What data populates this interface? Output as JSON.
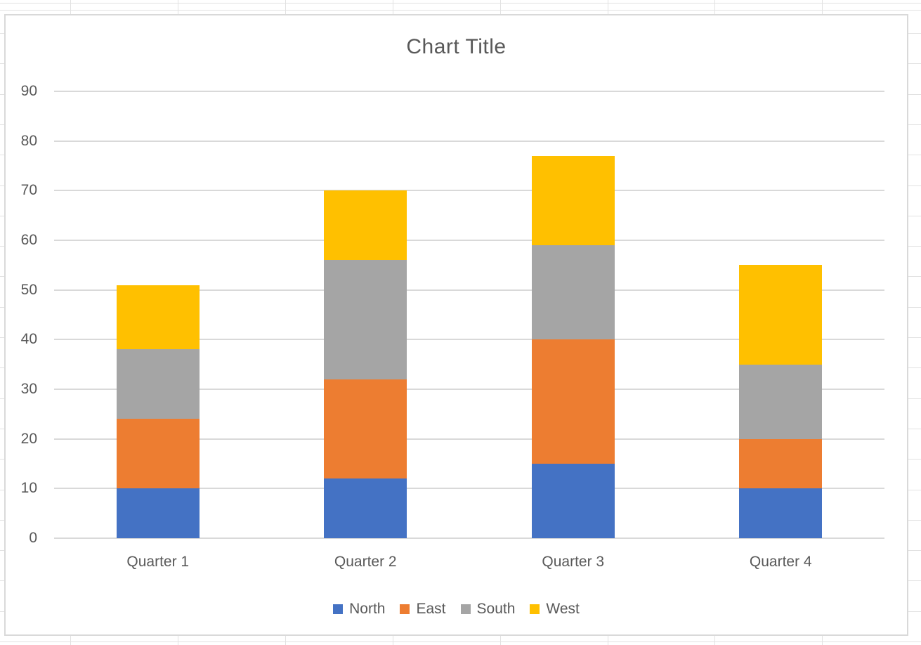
{
  "chart_data": {
    "type": "bar",
    "stacked": true,
    "title": "Chart Title",
    "categories": [
      "Quarter 1",
      "Quarter 2",
      "Quarter 3",
      "Quarter 4"
    ],
    "series": [
      {
        "name": "North",
        "color": "#4472C4",
        "values": [
          10,
          12,
          15,
          10
        ]
      },
      {
        "name": "East",
        "color": "#ED7D31",
        "values": [
          14,
          20,
          25,
          10
        ]
      },
      {
        "name": "South",
        "color": "#A5A5A5",
        "values": [
          14,
          24,
          19,
          15
        ]
      },
      {
        "name": "West",
        "color": "#FFC000",
        "values": [
          13,
          14,
          18,
          20
        ]
      }
    ],
    "stack_totals": [
      51,
      70,
      77,
      55
    ],
    "y_axis": {
      "min": 0,
      "max": 90,
      "step": 10,
      "tick_labels": [
        "0",
        "10",
        "20",
        "30",
        "40",
        "50",
        "60",
        "70",
        "80",
        "90"
      ]
    },
    "xlabel": "",
    "ylabel": "",
    "grid": true,
    "legend": {
      "position": "bottom",
      "entries": [
        "North",
        "East",
        "South",
        "West"
      ]
    },
    "styles": {
      "text_color": "#595959",
      "plot_gridline_color": "#D9D9D9",
      "chart_border_color": "#D9D9D9",
      "sheet_gridline_color": "#E2E2E2"
    }
  }
}
